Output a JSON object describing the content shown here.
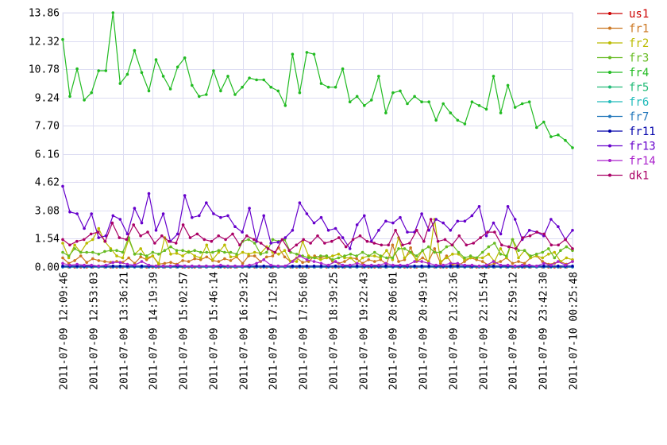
{
  "chart_data": {
    "type": "line",
    "title": "",
    "xlabel": "",
    "ylabel": "",
    "ylim": [
      0,
      13.86
    ],
    "grid": true,
    "legend_position": "right",
    "y_ticks": [
      "0.00",
      "1.54",
      "3.08",
      "4.62",
      "6.16",
      "7.70",
      "9.24",
      "10.78",
      "12.32",
      "13.86"
    ],
    "x_ticks": [
      "2011-07-09 12:09:46",
      "2011-07-09 12:53:03",
      "2011-07-09 13:36:21",
      "2011-07-09 14:19:39",
      "2011-07-09 15:02:57",
      "2011-07-09 15:46:14",
      "2011-07-09 16:29:32",
      "2011-07-09 17:12:50",
      "2011-07-09 17:56:08",
      "2011-07-09 18:39:25",
      "2011-07-09 19:22:43",
      "2011-07-09 20:06:01",
      "2011-07-09 20:49:19",
      "2011-07-09 21:32:36",
      "2011-07-09 22:15:54",
      "2011-07-09 22:59:12",
      "2011-07-09 23:42:30",
      "2011-07-10 00:25:48"
    ],
    "series": [
      {
        "name": "us1",
        "color": "#cc0000",
        "values": [
          0,
          0,
          0,
          0,
          0,
          0,
          0,
          0,
          0,
          0,
          0,
          0,
          0,
          0,
          0,
          0,
          0,
          0,
          0,
          0,
          0,
          0,
          0,
          0,
          0,
          0,
          0,
          0,
          0,
          0,
          0,
          0,
          0,
          0,
          0,
          0,
          0,
          0,
          0,
          0,
          0,
          0,
          0,
          0,
          0,
          0,
          0,
          0,
          0,
          0,
          0,
          0,
          0,
          0,
          0,
          0,
          0,
          0,
          0,
          0,
          0,
          0,
          0,
          0,
          0,
          0,
          0,
          0,
          0,
          0,
          0,
          0,
          0,
          0,
          0,
          0,
          0,
          0,
          0,
          0,
          0,
          0,
          0,
          0,
          0,
          0
        ]
      },
      {
        "name": "fr1",
        "color": "#cc7722",
        "values": [
          0.5,
          0.2,
          0.35,
          0.6,
          0.25,
          0.45,
          0.35,
          0.3,
          0.25,
          0.3,
          0.25,
          0.5,
          0.2,
          0.55,
          0.4,
          0.6,
          0.15,
          0.2,
          0.25,
          0.15,
          0.35,
          0.3,
          0.45,
          0.4,
          0.55,
          0.35,
          0.3,
          0.45,
          0.35,
          0.55,
          0.2,
          0.6,
          0.6,
          0.3,
          0.55,
          0.6,
          1.05,
          0.55,
          0.3,
          0.5,
          0.25,
          0.3,
          0.6,
          0.5,
          0.6,
          0.3,
          0.2,
          0.3,
          0.5,
          0.45,
          0.2,
          0.4,
          0.3,
          0.4,
          0.15,
          1.2,
          0.3,
          0.4,
          1.05,
          0.3,
          0.5,
          0.3,
          1.0,
          0.2,
          0.6,
          0.15,
          0.1,
          0.3,
          0.5,
          0.4,
          0.3,
          0.1,
          0.2,
          0.3,
          0.5,
          0.2,
          0.3,
          0.2,
          0.5,
          0.6,
          0.3,
          0.15,
          0.2,
          0.3,
          0.15,
          0.3
        ]
      },
      {
        "name": "fr2",
        "color": "#bbbb00",
        "values": [
          1.3,
          0.5,
          1.2,
          0.8,
          1.3,
          1.5,
          2.1,
          1.4,
          1.0,
          0.6,
          0.5,
          1.5,
          0.7,
          1.0,
          0.5,
          0.6,
          0.2,
          1.6,
          0.7,
          0.75,
          0.6,
          0.85,
          0.6,
          0.5,
          1.2,
          0.4,
          0.8,
          1.2,
          0.55,
          0.6,
          0.8,
          0.7,
          0.8,
          0.75,
          1.1,
          0.8,
          0.7,
          0.9,
          0.3,
          0.3,
          1.4,
          0.6,
          0.5,
          0.4,
          0.5,
          0.6,
          0.7,
          0.5,
          0.5,
          0.2,
          0.5,
          0.6,
          0.6,
          0.5,
          0.9,
          0.4,
          1.6,
          0.5,
          0.8,
          0.4,
          0.9,
          0.2,
          2.6,
          0.3,
          0.5,
          0.7,
          0.7,
          0.4,
          0.5,
          0.5,
          0.5,
          0.7,
          0.3,
          1.0,
          0.5,
          1.5,
          0.5,
          0.9,
          0.5,
          0.6,
          0.5,
          0.7,
          0.8,
          0.3,
          0.5,
          0.4
        ]
      },
      {
        "name": "fr3",
        "color": "#66bb22",
        "values": [
          0.8,
          0.6,
          1.0,
          0.8,
          0.8,
          0.8,
          0.7,
          0.85,
          0.9,
          0.9,
          0.8,
          1.6,
          0.7,
          0.7,
          0.6,
          0.8,
          0.7,
          0.9,
          1.1,
          0.9,
          0.9,
          0.8,
          0.9,
          0.8,
          0.8,
          0.8,
          0.9,
          0.8,
          0.8,
          0.7,
          1.4,
          1.5,
          1.3,
          0.7,
          0.8,
          1.5,
          1.4,
          1.5,
          0.8,
          0.7,
          0.6,
          0.5,
          0.5,
          0.6,
          0.6,
          0.4,
          0.5,
          0.6,
          0.7,
          0.6,
          0.8,
          0.6,
          0.8,
          0.6,
          0.5,
          0.5,
          1.0,
          1.0,
          0.8,
          0.6,
          0.9,
          1.1,
          0.8,
          0.8,
          1.1,
          1.2,
          0.8,
          0.5,
          0.6,
          0.5,
          0.8,
          1.1,
          1.3,
          0.7,
          0.6,
          1.5,
          0.9,
          0.9,
          0.6,
          0.7,
          0.8,
          1.0,
          0.5,
          0.9,
          1.1,
          0.9
        ]
      },
      {
        "name": "fr4",
        "color": "#22bb22",
        "values": [
          12.4,
          9.3,
          10.8,
          9.1,
          9.5,
          10.7,
          10.7,
          13.86,
          10.0,
          10.5,
          11.8,
          10.6,
          9.6,
          11.3,
          10.4,
          9.7,
          10.9,
          11.4,
          9.9,
          9.3,
          9.4,
          10.7,
          9.6,
          10.4,
          9.4,
          9.8,
          10.3,
          10.2,
          10.2,
          9.8,
          9.6,
          8.8,
          11.6,
          9.5,
          11.7,
          11.6,
          10.0,
          9.8,
          9.8,
          10.8,
          9.0,
          9.3,
          8.8,
          9.1,
          10.4,
          8.4,
          9.5,
          9.6,
          8.9,
          9.3,
          9.0,
          9.0,
          8.0,
          8.9,
          8.4,
          8.0,
          7.8,
          9.0,
          8.8,
          8.6,
          10.4,
          8.4,
          9.9,
          8.7,
          8.9,
          9.0,
          7.6,
          7.9,
          7.1,
          7.2,
          6.9,
          6.5
        ]
      },
      {
        "name": "fr5",
        "color": "#22bb77",
        "values": [
          0,
          0,
          0,
          0,
          0,
          0,
          0,
          0,
          0,
          0,
          0,
          0,
          0,
          0,
          0,
          0,
          0,
          0,
          0,
          0,
          0,
          0,
          0,
          0,
          0,
          0,
          0,
          0,
          0,
          0,
          0,
          0,
          0,
          0,
          0,
          0,
          0,
          0,
          0,
          0,
          0,
          0,
          0,
          0,
          0,
          0,
          0,
          0,
          0,
          0,
          0,
          0,
          0,
          0,
          0,
          0,
          0,
          0,
          0,
          0,
          0,
          0,
          0,
          0,
          0,
          0,
          0,
          0,
          0,
          0,
          0,
          0
        ]
      },
      {
        "name": "fr6",
        "color": "#22bbbb",
        "values": [
          0,
          0,
          0,
          0,
          0,
          0,
          0,
          0,
          0,
          0,
          0,
          0,
          0,
          0,
          0,
          0,
          0,
          0,
          0,
          0,
          0,
          0,
          0,
          0,
          0,
          0,
          0,
          0,
          0,
          0,
          0,
          0,
          0,
          0,
          0,
          0,
          0,
          0,
          0,
          0,
          0,
          0,
          0,
          0,
          0,
          0,
          0,
          0,
          0,
          0,
          0,
          0,
          0,
          0,
          0,
          0,
          0,
          0,
          0,
          0,
          0,
          0,
          0,
          0,
          0,
          0,
          0,
          0,
          0,
          0,
          0,
          0
        ]
      },
      {
        "name": "fr7",
        "color": "#2277bb",
        "values": [
          0,
          0,
          0,
          0,
          0,
          0,
          0,
          0,
          0,
          0,
          0,
          0,
          0,
          0,
          0,
          0,
          0,
          0,
          0,
          0,
          0,
          0,
          0,
          0,
          0,
          0,
          0,
          0,
          0,
          0,
          0,
          0,
          0,
          0,
          0,
          0,
          0,
          0,
          0,
          0,
          0,
          0,
          0,
          0,
          0,
          0,
          0,
          0,
          0,
          0,
          0,
          0,
          0,
          0,
          0,
          0,
          0,
          0,
          0,
          0,
          0,
          0,
          0,
          0,
          0,
          0,
          0,
          0,
          0,
          0,
          0,
          0
        ]
      },
      {
        "name": "fr11",
        "color": "#0000aa",
        "values": [
          0.05,
          0.05,
          0.05,
          0.05,
          0.05,
          0.05,
          0.05,
          0.05,
          0.05,
          0.05,
          0.05,
          0.05,
          0.05,
          0.05,
          0.05,
          0.05,
          0.05,
          0.05,
          0.05,
          0.05,
          0.05,
          0.05,
          0.05,
          0.05,
          0.05,
          0.05,
          0.05,
          0.05,
          0.05,
          0.05,
          0.05,
          0.05,
          0.05,
          0.05,
          0.05,
          0.05,
          0.05,
          0.05,
          0.05,
          0.05,
          0.05,
          0.05,
          0.05,
          0.05,
          0.05,
          0.05,
          0.05,
          0.05,
          0.05,
          0.05,
          0.05,
          0.05,
          0.05,
          0.05,
          0.05,
          0.05,
          0.05,
          0.05,
          0.05,
          0.05,
          0.05,
          0.05,
          0.05,
          0.05,
          0.05,
          0.05,
          0.05,
          0.05,
          0.05,
          0.05,
          0.05,
          0.05
        ]
      },
      {
        "name": "fr13",
        "color": "#6600cc",
        "values": [
          4.4,
          3.0,
          2.9,
          2.1,
          2.9,
          1.6,
          1.7,
          2.8,
          2.6,
          1.8,
          3.2,
          2.4,
          4.0,
          2.0,
          2.9,
          1.4,
          1.8,
          3.9,
          2.7,
          2.8,
          3.5,
          2.9,
          2.7,
          2.8,
          2.2,
          1.9,
          3.2,
          1.4,
          2.8,
          1.3,
          1.35,
          1.6,
          2.0,
          3.5,
          2.9,
          2.4,
          2.7,
          2.0,
          2.1,
          1.6,
          1.0,
          2.3,
          2.8,
          1.4,
          2.0,
          2.5,
          2.4,
          2.7,
          1.9,
          1.9,
          2.9,
          2.0,
          2.6,
          2.4,
          2.0,
          2.5,
          2.5,
          2.8,
          3.3,
          1.7,
          2.4,
          1.8,
          3.3,
          2.6,
          1.5,
          2.0,
          1.9,
          1.7,
          2.6,
          2.2,
          1.5,
          2.0
        ]
      },
      {
        "name": "fr14",
        "color": "#aa22cc",
        "values": [
          0.2,
          0.1,
          0.15,
          0.1,
          0.1,
          0.05,
          0.1,
          0.25,
          0.25,
          0.15,
          0.1,
          0.3,
          0.1,
          0.05,
          0.05,
          0.05,
          0.1,
          0.05,
          0.05,
          0.05,
          0.05,
          0.05,
          0.1,
          0.05,
          0.05,
          0.05,
          0.1,
          0.2,
          0.4,
          0.1,
          0.05,
          0.05,
          0.3,
          0.6,
          0.4,
          0.3,
          0.2,
          0.1,
          0.3,
          0.1,
          0.1,
          0.2,
          0.1,
          0.1,
          0.1,
          0.2,
          0.1,
          0.1,
          0.1,
          0.3,
          0.3,
          0.2,
          0.1,
          0.1,
          0.2,
          0.2,
          0.1,
          0.1,
          0.05,
          0.1,
          0.3,
          0.1,
          0.1,
          0.05,
          0.1,
          0.1,
          0.05,
          0.2,
          0.1,
          0.3,
          0.1,
          0.3
        ]
      },
      {
        "name": "dk1",
        "color": "#aa0066",
        "values": [
          1.5,
          1.2,
          1.4,
          1.5,
          1.8,
          1.9,
          1.4,
          2.4,
          1.6,
          1.5,
          2.3,
          1.7,
          1.9,
          1.3,
          1.7,
          1.4,
          1.3,
          2.3,
          1.6,
          1.8,
          1.5,
          1.4,
          1.7,
          1.5,
          1.8,
          1.2,
          1.7,
          1.5,
          1.3,
          1.0,
          0.8,
          1.5,
          0.9,
          1.2,
          1.5,
          1.3,
          1.7,
          1.3,
          1.4,
          1.6,
          1.1,
          1.5,
          1.7,
          1.4,
          1.3,
          1.2,
          1.2,
          2.0,
          1.2,
          1.3,
          2.0,
          1.4,
          2.6,
          1.4,
          1.5,
          1.2,
          1.7,
          1.2,
          1.3,
          1.6,
          1.9,
          1.9,
          1.2,
          1.1,
          1.0,
          1.6,
          1.7,
          1.9,
          1.8,
          1.2,
          1.2,
          1.5,
          1.0
        ]
      }
    ]
  }
}
